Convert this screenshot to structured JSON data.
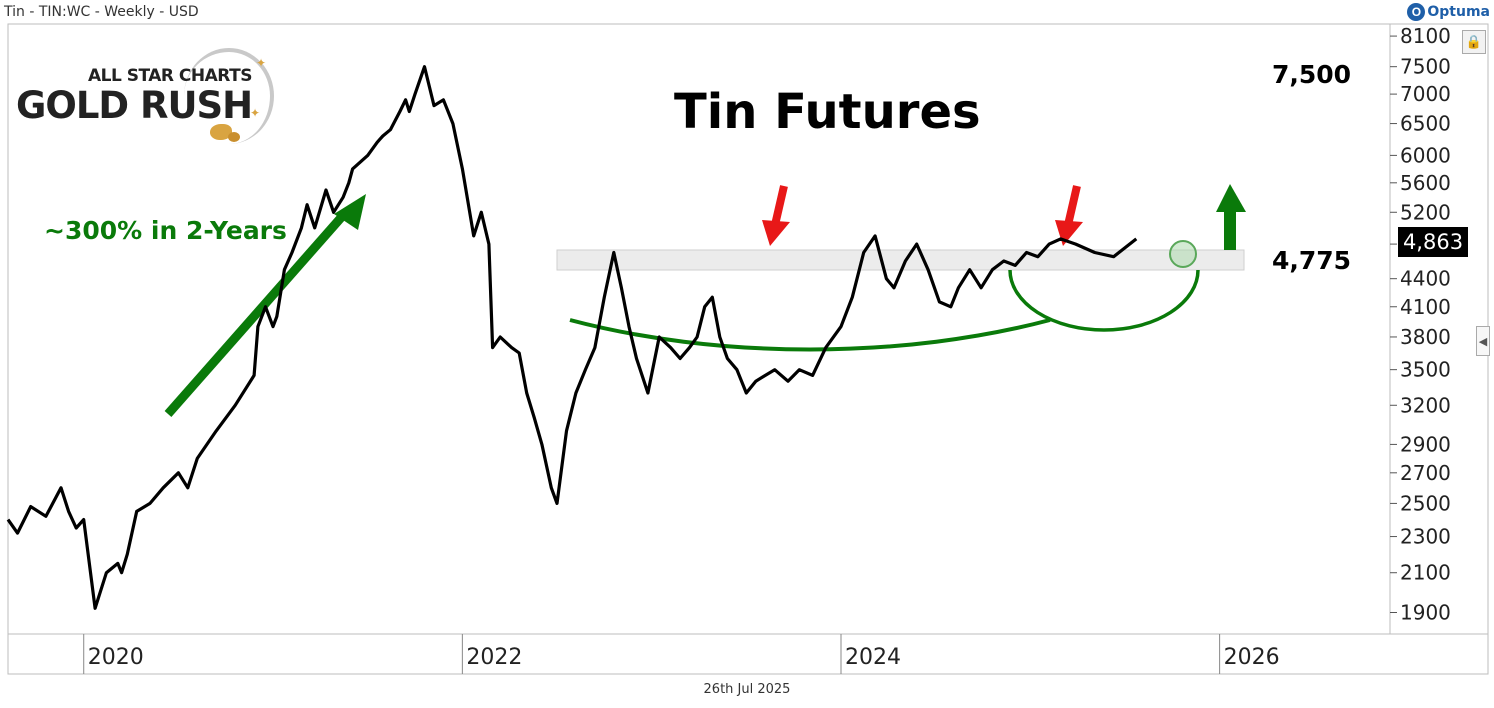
{
  "header": {
    "title": "Tin - TIN:WC - Weekly - USD",
    "brand": "Optuma",
    "brand_mark": "O"
  },
  "footer": {
    "date": "26th Jul 2025"
  },
  "logo": {
    "top_text": "ALL STAR CHARTS",
    "main_text": "GOLD RUSH"
  },
  "icons": {
    "lock": "lock-icon",
    "collapse": "chevron-left-icon"
  },
  "colors": {
    "price_line": "#000000",
    "annotation_green": "#0a7a0a",
    "arrow_red": "#e81818",
    "resistance_band": "#e6e6e6"
  },
  "chart_data": {
    "type": "line",
    "title": "Tin Futures",
    "xlabel": "",
    "ylabel": "",
    "y_scale": "log",
    "ylim": [
      1800,
      8350
    ],
    "xlim": [
      2019.6,
      2026.9
    ],
    "x_ticks": [
      "2020",
      "2022",
      "2024",
      "2026"
    ],
    "y_ticks": [
      1900,
      2100,
      2300,
      2500,
      2700,
      2900,
      3200,
      3500,
      3800,
      4100,
      4400,
      4800,
      5200,
      5600,
      6000,
      6500,
      7000,
      7500,
      8100
    ],
    "last_price": 4863,
    "last_price_label": "4,863",
    "annotations": {
      "gain": "~300% in 2-Years",
      "level_high": "7,500",
      "level_resistance": "4,775",
      "resistance_zone": [
        4600,
        4950
      ]
    },
    "series": [
      {
        "x": [
          2019.6,
          2019.65,
          2019.72,
          2019.8,
          2019.88,
          2019.92,
          2019.96,
          2020.0,
          2020.06,
          2020.12,
          2020.18,
          2020.2,
          2020.23,
          2020.28,
          2020.35,
          2020.42,
          2020.5,
          2020.55,
          2020.6,
          2020.7,
          2020.8,
          2020.9,
          2020.92,
          2020.96,
          2021.0,
          2021.02,
          2021.06,
          2021.1,
          2021.15,
          2021.18,
          2021.22,
          2021.28,
          2021.32,
          2021.37,
          2021.4,
          2021.42,
          2021.5,
          2021.55,
          2021.58,
          2021.62,
          2021.67,
          2021.7,
          2021.72,
          2021.75,
          2021.8,
          2021.85,
          2021.9,
          2021.95,
          2022.0,
          2022.06,
          2022.1,
          2022.14,
          2022.16,
          2022.2,
          2022.26,
          2022.3,
          2022.34,
          2022.38,
          2022.42,
          2022.47,
          2022.5,
          2022.55,
          2022.6,
          2022.65,
          2022.7,
          2022.75,
          2022.8,
          2022.84,
          2022.88,
          2022.92,
          2022.98,
          2023.04,
          2023.1,
          2023.15,
          2023.2,
          2023.24,
          2023.28,
          2023.32,
          2023.36,
          2023.4,
          2023.45,
          2023.5,
          2023.55,
          2023.6,
          2023.65,
          2023.72,
          2023.78,
          2023.85,
          2023.92,
          2024.0,
          2024.06,
          2024.12,
          2024.18,
          2024.24,
          2024.28,
          2024.34,
          2024.4,
          2024.46,
          2024.52,
          2024.58,
          2024.62,
          2024.68,
          2024.74,
          2024.8,
          2024.86,
          2024.92,
          2024.98,
          2025.04,
          2025.1,
          2025.16,
          2025.24,
          2025.34,
          2025.44,
          2025.56
        ],
        "y": [
          2400,
          2320,
          2480,
          2420,
          2600,
          2450,
          2350,
          2400,
          1920,
          2100,
          2150,
          2100,
          2200,
          2450,
          2500,
          2600,
          2700,
          2600,
          2800,
          3000,
          3200,
          3450,
          3900,
          4100,
          3900,
          4000,
          4500,
          4700,
          5000,
          5300,
          5000,
          5500,
          5200,
          5400,
          5600,
          5800,
          6000,
          6200,
          6300,
          6400,
          6700,
          6900,
          6700,
          7000,
          7500,
          6800,
          6900,
          6500,
          5800,
          4900,
          5200,
          4800,
          3700,
          3800,
          3700,
          3650,
          3300,
          3100,
          2900,
          2600,
          2500,
          3000,
          3300,
          3500,
          3700,
          4200,
          4700,
          4300,
          3900,
          3600,
          3300,
          3800,
          3700,
          3600,
          3700,
          3800,
          4100,
          4200,
          3800,
          3600,
          3500,
          3300,
          3400,
          3450,
          3500,
          3400,
          3500,
          3450,
          3700,
          3900,
          4200,
          4700,
          4900,
          4400,
          4300,
          4600,
          4800,
          4500,
          4150,
          4100,
          4300,
          4500,
          4300,
          4500,
          4600,
          4550,
          4700,
          4650,
          4800,
          4863,
          4800,
          4700,
          4650,
          4863
        ]
      }
    ]
  }
}
